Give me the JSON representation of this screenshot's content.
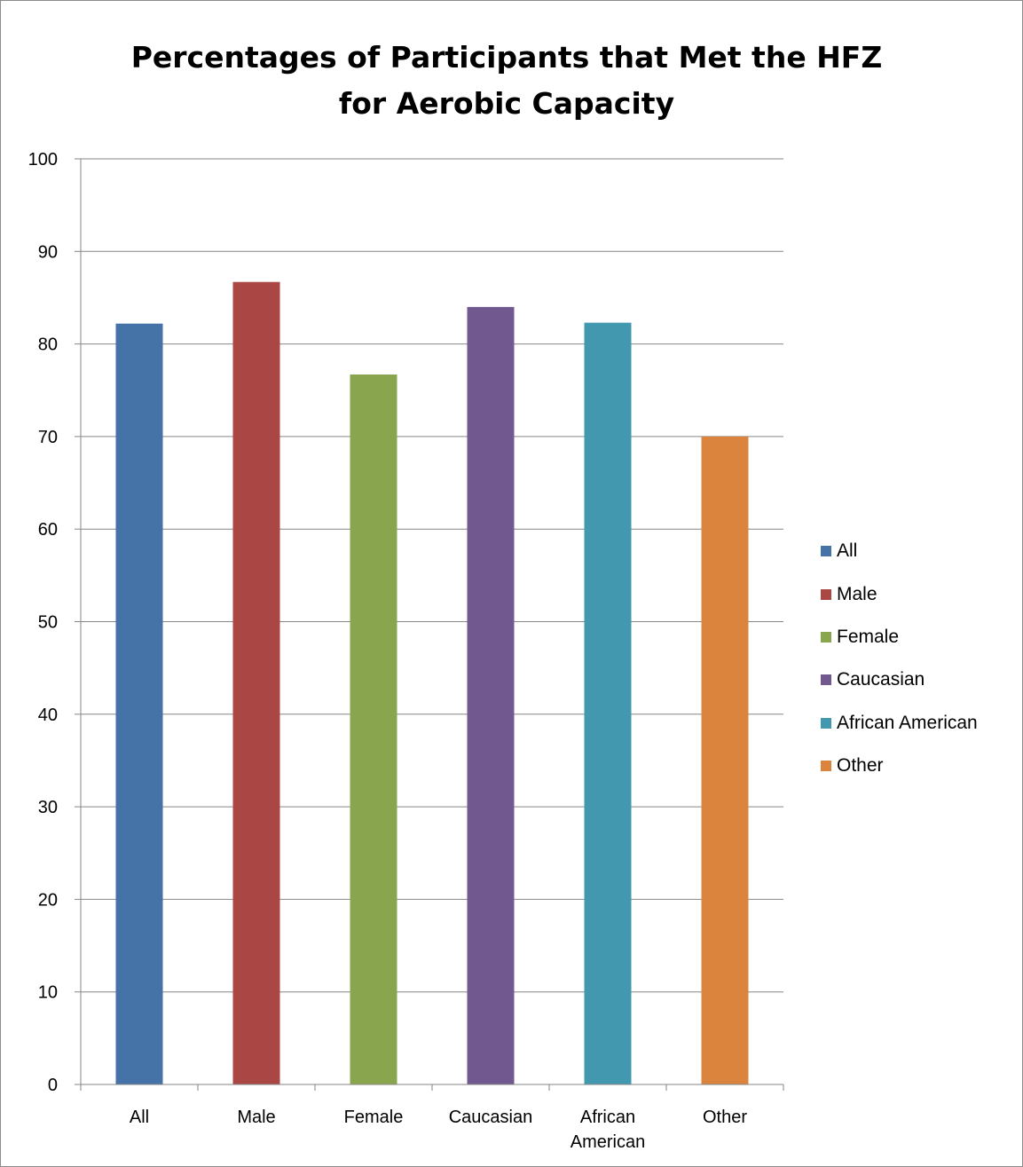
{
  "chart_data": {
    "type": "bar",
    "title": "Percentages of Participants that Met the HFZ for Aerobic Capacity",
    "title_lines": [
      "Percentages of Participants that Met the HFZ",
      "for Aerobic Capacity"
    ],
    "categories": [
      "All",
      "Male",
      "Female",
      "Caucasian",
      "African American",
      "Other"
    ],
    "category_label_lines": [
      [
        "All"
      ],
      [
        "Male"
      ],
      [
        "Female"
      ],
      [
        "Caucasian"
      ],
      [
        "African",
        "American"
      ],
      [
        "Other"
      ]
    ],
    "values": [
      82.2,
      86.7,
      76.7,
      84.0,
      82.3,
      70.0
    ],
    "colors": [
      "#4572a7",
      "#aa4643",
      "#89a54e",
      "#71588f",
      "#4198af",
      "#db843d"
    ],
    "ylim": [
      0,
      100
    ],
    "yticks": [
      0,
      10,
      20,
      30,
      40,
      50,
      60,
      70,
      80,
      90,
      100
    ],
    "grid": true,
    "legend_position": "right",
    "xlabel": "",
    "ylabel": ""
  }
}
